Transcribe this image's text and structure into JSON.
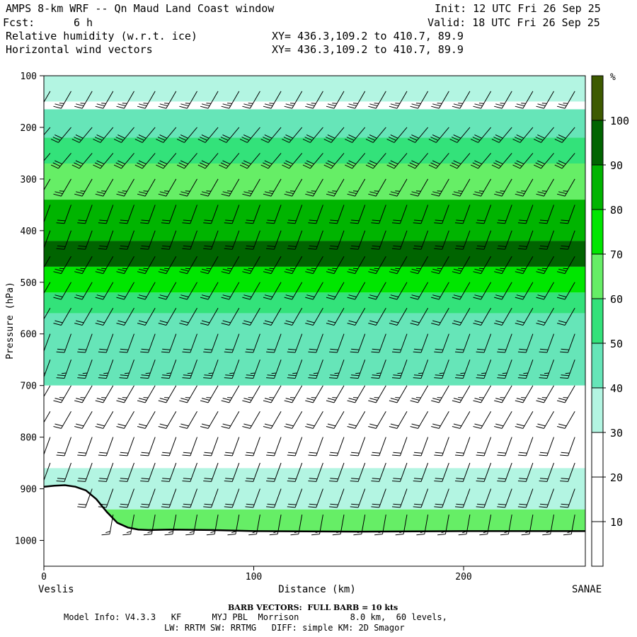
{
  "header": {
    "title": "AMPS 8-km WRF -- Qn Maud Land Coast window",
    "init": "Init: 12 UTC Fri 26 Sep 25",
    "fcst_label": "Fcst:",
    "fcst_value": "6 h",
    "valid": "Valid: 18 UTC Fri 26 Sep 25",
    "field1": "Relative humidity (w.r.t. ice)",
    "field1_xy": "XY= 436.3,109.2 to 410.7, 89.9",
    "field2": "Horizontal wind vectors",
    "field2_xy": "XY= 436.3,109.2 to 410.7, 89.9"
  },
  "footer": {
    "barb": "BARB VECTORS:  FULL BARB = 10 kts",
    "model_line1": "Model Info: V4.3.3   KF      MYJ PBL  Morrison          8.0 km,  60 levels,",
    "model_line2": "LW: RRTM SW: RRTMG   DIFF: simple KM: 2D Smagor"
  },
  "colors": {
    "rh_10_30": "#ffffff",
    "rh_30_40": "#b3f5e2",
    "rh_40_50": "#66e5b8",
    "rh_50_60": "#33e27a",
    "rh_60_70": "#66ee66",
    "rh_70_80": "#00e600",
    "rh_80_90": "#00b400",
    "rh_90_100": "#006400",
    "rh_100_plus": "#3d5a00"
  },
  "chart_data": {
    "type": "heatmap",
    "xlabel": "Distance (km)",
    "ylabel": "Pressure (hPa)",
    "xlim": [
      0,
      258
    ],
    "ylim": [
      1050,
      100
    ],
    "x_ticks": [
      0,
      100,
      200
    ],
    "y_ticks": [
      100,
      200,
      300,
      400,
      500,
      600,
      700,
      800,
      900,
      1000
    ],
    "x_start_label": "Veslis",
    "x_end_label": "SANAE",
    "colorbar_unit": "%",
    "colorbar_ticks": [
      10,
      20,
      30,
      40,
      50,
      60,
      70,
      80,
      90,
      100
    ],
    "terrain": {
      "x_km": [
        0,
        5,
        10,
        15,
        20,
        25,
        30,
        35,
        40,
        45,
        50,
        60,
        80,
        100,
        150,
        200,
        258
      ],
      "p_hpa": [
        896,
        894,
        893,
        896,
        903,
        920,
        945,
        966,
        975,
        979,
        980,
        979,
        980,
        982,
        983,
        982,
        982
      ]
    },
    "rh_layers": [
      {
        "p_top": 100,
        "p_bot": 150,
        "rh": 35
      },
      {
        "p_top": 150,
        "p_bot": 165,
        "rh": 20
      },
      {
        "p_top": 165,
        "p_bot": 220,
        "rh": 45
      },
      {
        "p_top": 220,
        "p_bot": 270,
        "rh": 55
      },
      {
        "p_top": 270,
        "p_bot": 340,
        "rh": 65
      },
      {
        "p_top": 340,
        "p_bot": 420,
        "rh": 88
      },
      {
        "p_top": 420,
        "p_bot": 470,
        "rh": 95
      },
      {
        "p_top": 470,
        "p_bot": 520,
        "rh": 75
      },
      {
        "p_top": 520,
        "p_bot": 560,
        "rh": 55
      },
      {
        "p_top": 560,
        "p_bot": 700,
        "rh": 42
      },
      {
        "p_top": 700,
        "p_bot": 860,
        "rh": 25
      },
      {
        "p_top": 860,
        "p_bot": 940,
        "rh": 35
      },
      {
        "p_top": 940,
        "p_bot": 990,
        "rh": 60
      }
    ],
    "wind_barbs": {
      "x_km_start": 3,
      "x_km_step": 10,
      "p_levels": [
        130,
        200,
        250,
        300,
        350,
        400,
        450,
        500,
        550,
        600,
        650,
        700,
        750,
        800,
        850,
        900,
        950,
        990
      ],
      "speed_kts": [
        25,
        30,
        30,
        25,
        20,
        20,
        25,
        20,
        20,
        20,
        25,
        25,
        20,
        20,
        20,
        20,
        15,
        10
      ],
      "dir_deg": [
        210,
        220,
        220,
        210,
        200,
        200,
        210,
        210,
        210,
        200,
        200,
        210,
        210,
        200,
        200,
        200,
        190,
        180
      ]
    }
  }
}
